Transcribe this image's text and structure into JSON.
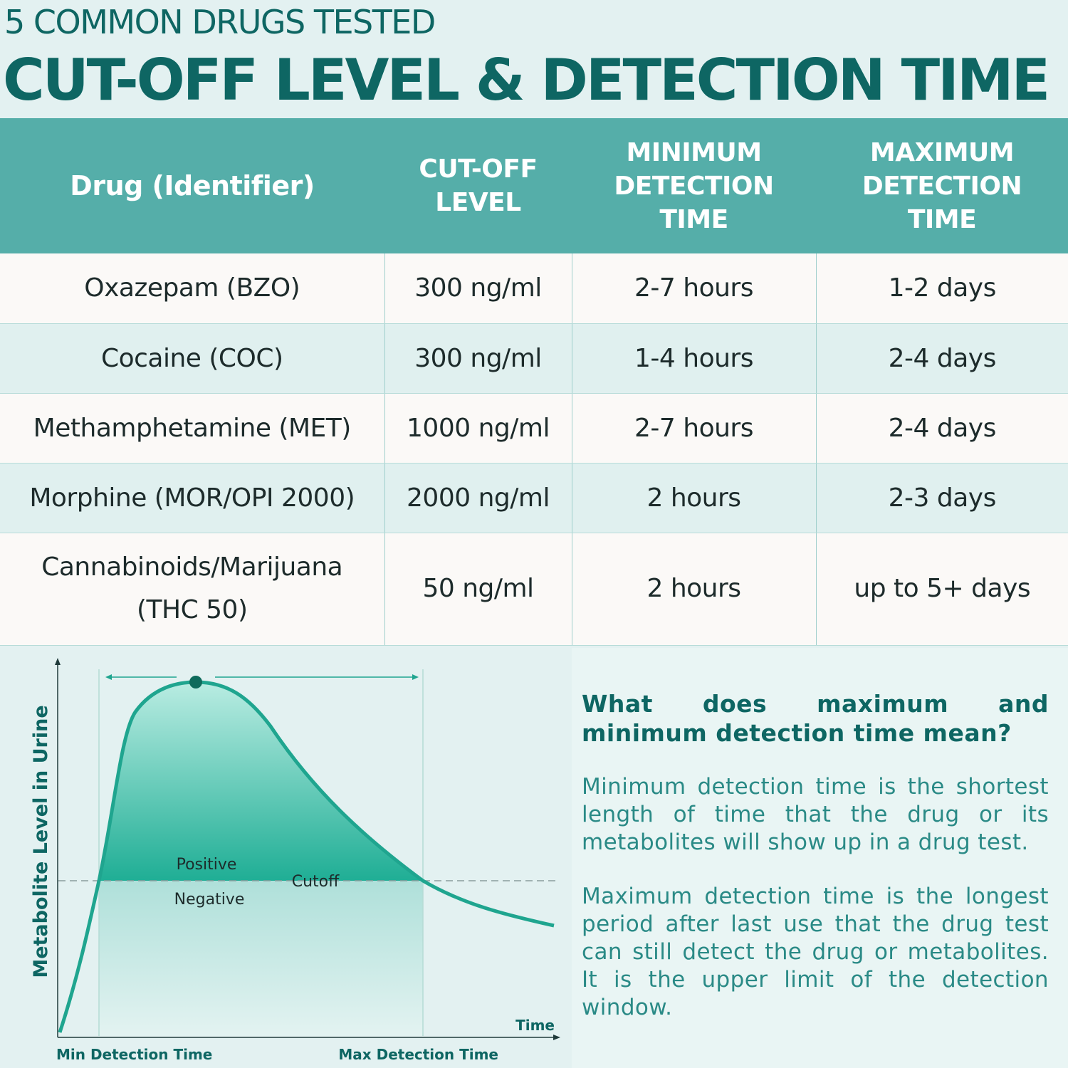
{
  "header": {
    "subtitle": "5 COMMON DRUGS TESTED",
    "title": "CUT-OFF LEVEL & DETECTION TIME"
  },
  "table": {
    "columns": [
      "Drug (Identifier)",
      "CUT-OFF LEVEL",
      "MINIMUM DETECTION TIME",
      "MAXIMUM DETECTION TIME"
    ],
    "rows": [
      {
        "drug": "Oxazepam (BZO)",
        "cutoff": "300 ng/ml",
        "min": "2-7 hours",
        "max": "1-2 days"
      },
      {
        "drug": "Cocaine (COC)",
        "cutoff": "300 ng/ml",
        "min": "1-4 hours",
        "max": "2-4 days"
      },
      {
        "drug": "Methamphetamine (MET)",
        "cutoff": "1000 ng/ml",
        "min": "2-7 hours",
        "max": "2-4 days"
      },
      {
        "drug": "Morphine (MOR/OPI 2000)",
        "cutoff": "2000 ng/ml",
        "min": "2 hours",
        "max": "2-3 days"
      },
      {
        "drug": "Cannabinoids/Marijuana (THC 50)",
        "cutoff": "50 ng/ml",
        "min": "2 hours",
        "max": "up to 5+ days"
      }
    ]
  },
  "diagram": {
    "y_axis_label": "Metabolite Level in Urine",
    "x_axis_label": "Time",
    "positive_label": "Positive",
    "negative_label": "Negative",
    "cutoff_label": "Cutoff",
    "min_label": "Min Detection Time",
    "max_label": "Max Detection Time",
    "curve_color": "#1fa58f",
    "axis_color": "#1f3a3a"
  },
  "info": {
    "heading": "What does maximum and minimum detection time mean?",
    "paragraph1": "Minimum detection time is the shortest length of time that the drug or its metabolites will show up in a drug test.",
    "paragraph2": "Maximum detection time is the longest period after last use that the drug test can still detect the drug or metabolites. It is the upper limit of the detection window."
  }
}
